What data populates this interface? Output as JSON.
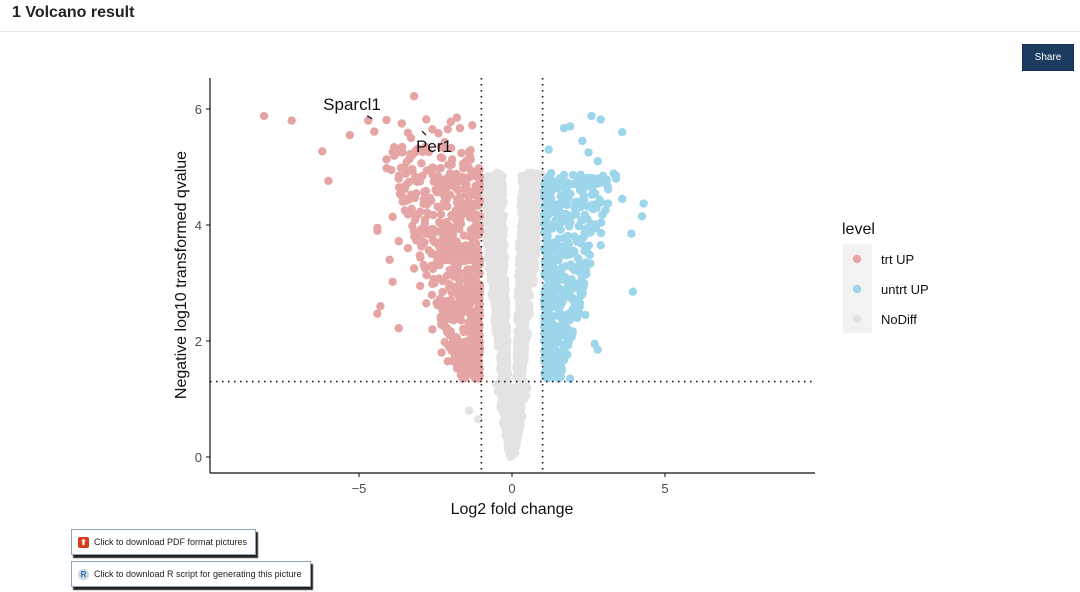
{
  "header": {
    "title": "1 Volcano result"
  },
  "toolbar": {
    "share_label": "Share"
  },
  "downloads": {
    "pdf_label": "Click to download PDF format pictures",
    "r_label": "Click to download R script for generating this picture"
  },
  "colors": {
    "trt_up": "#e6a5a5",
    "untrt_up": "#9dd5ea",
    "nodiff": "#e4e2e2",
    "share_bg": "#1b3c5e"
  },
  "chart_data": {
    "type": "scatter",
    "title": "",
    "xlabel": "Log2 fold change",
    "ylabel": "Negative log10 transformed qvalue",
    "xlim": [
      -9.8,
      9.8
    ],
    "ylim": [
      -0.3,
      6.6
    ],
    "xticks": [
      -5,
      0,
      5
    ],
    "xtick_labels": [
      "−5",
      "0",
      "5"
    ],
    "yticks": [
      0,
      2,
      4,
      6
    ],
    "ytick_labels": [
      "0",
      "2",
      "4",
      "6"
    ],
    "grid": false,
    "thresholds": {
      "fc_lines": [
        -1,
        1
      ],
      "q_line": 1.3
    },
    "legend": {
      "title": "level",
      "position": "right",
      "entries": [
        {
          "label": "trt UP",
          "color": "#e6a5a5"
        },
        {
          "label": "untrt UP",
          "color": "#9dd5ea"
        },
        {
          "label": "NoDiff",
          "color": "#e4e2e2"
        }
      ]
    },
    "annotations": [
      {
        "label": "Sparcl1",
        "x": -4.6,
        "y": 5.9
      },
      {
        "label": "Per1",
        "x": -3.2,
        "y": 5.6
      }
    ],
    "series": [
      {
        "name": "trt UP",
        "points": [
          [
            -8.1,
            5.88
          ],
          [
            -7.2,
            5.8
          ],
          [
            -6.2,
            5.27
          ],
          [
            -5.3,
            5.55
          ],
          [
            -6.0,
            4.76
          ],
          [
            -4.7,
            5.8
          ],
          [
            -4.5,
            5.61
          ],
          [
            -4.1,
            5.81
          ],
          [
            -3.6,
            5.75
          ],
          [
            -3.4,
            5.59
          ],
          [
            -3.3,
            5.5
          ],
          [
            -3.2,
            6.22
          ],
          [
            -2.8,
            5.82
          ],
          [
            -2.6,
            5.65
          ],
          [
            -2.4,
            5.58
          ],
          [
            -2.1,
            5.65
          ],
          [
            -2.0,
            5.78
          ],
          [
            -1.8,
            5.85
          ],
          [
            -1.7,
            5.67
          ],
          [
            -1.3,
            5.72
          ],
          [
            -2.2,
            5.43
          ],
          [
            -3.9,
            5.26
          ],
          [
            -4.1,
            5.13
          ],
          [
            -4.1,
            4.98
          ],
          [
            -3.7,
            4.8
          ],
          [
            -3.5,
            4.65
          ],
          [
            -3.3,
            4.52
          ],
          [
            -3.5,
            4.25
          ],
          [
            -3.4,
            4.18
          ],
          [
            -3.9,
            4.14
          ],
          [
            -4.4,
            3.95
          ],
          [
            -4.4,
            3.9
          ],
          [
            -3.7,
            3.72
          ],
          [
            -3.4,
            3.6
          ],
          [
            -3.1,
            3.75
          ],
          [
            -2.9,
            3.95
          ],
          [
            -4.0,
            3.4
          ],
          [
            -3.9,
            3.02
          ],
          [
            -4.3,
            2.6
          ],
          [
            -4.4,
            2.47
          ],
          [
            -3.7,
            2.22
          ],
          [
            -3.2,
            3.25
          ],
          [
            -3.0,
            2.95
          ],
          [
            -2.8,
            2.65
          ],
          [
            -2.6,
            2.2
          ],
          [
            -2.3,
            1.8
          ],
          [
            -2.1,
            1.65
          ],
          [
            -2.2,
            1.98
          ]
        ]
      },
      {
        "name": "untrt UP",
        "points": [
          [
            2.6,
            5.88
          ],
          [
            2.9,
            5.82
          ],
          [
            3.6,
            5.6
          ],
          [
            1.9,
            5.7
          ],
          [
            1.7,
            5.67
          ],
          [
            2.3,
            5.45
          ],
          [
            2.8,
            5.1
          ],
          [
            1.2,
            5.3
          ],
          [
            2.5,
            5.25
          ],
          [
            3.1,
            4.78
          ],
          [
            3.4,
            4.8
          ],
          [
            3.6,
            4.45
          ],
          [
            4.3,
            4.37
          ],
          [
            4.25,
            4.15
          ],
          [
            3.9,
            3.85
          ],
          [
            3.95,
            2.85
          ],
          [
            2.7,
            1.95
          ],
          [
            2.8,
            1.85
          ],
          [
            1.9,
            1.35
          ],
          [
            1.6,
            1.38
          ],
          [
            2.4,
            2.45
          ],
          [
            2.9,
            3.65
          ]
        ]
      },
      {
        "name": "NoDiff",
        "points": [
          [
            -1.4,
            0.8
          ],
          [
            -1.1,
            0.65
          ]
        ]
      }
    ],
    "bulk_note": "dense clusters rendered procedurally along the volcano shape"
  }
}
